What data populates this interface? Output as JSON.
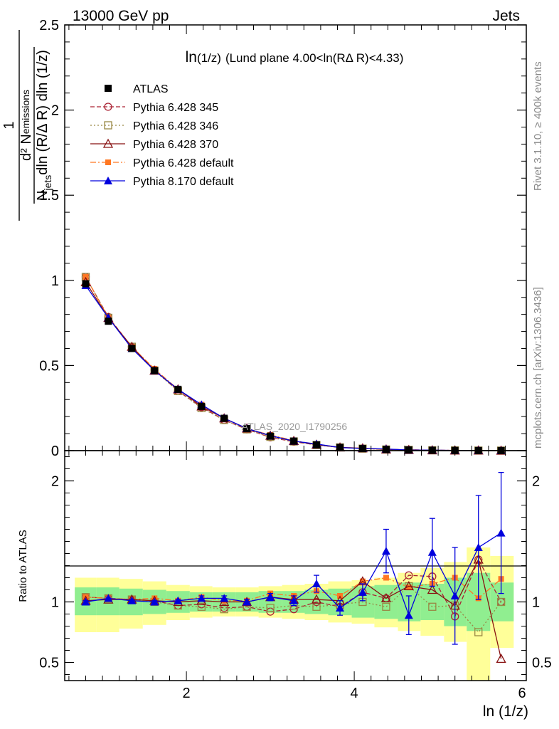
{
  "header": {
    "left": "13000 GeV pp",
    "right": "Jets"
  },
  "side_text": {
    "rivet": "Rivet 3.1.10, ≥ 400k events",
    "mcplots": "mcplots.cern.ch [arXiv:1306.3436]"
  },
  "watermark": "ATLAS_2020_I1790256",
  "colors": {
    "band_inner": "#90ee90",
    "band_outer": "#ffff99",
    "p345": "#aa2233",
    "p346": "#998844",
    "p370": "#881111",
    "p6def": "#ff7722",
    "p8": "#0000dd"
  },
  "chart_data": [
    {
      "type": "line",
      "title_main": "ln",
      "title_sub": "(1/z)",
      "title_rest": "(Lund plane 4.00<ln(RΔ R)<4.33)",
      "ylabel_num": "d² N",
      "ylabel_num_sub": "emissions",
      "ylabel_den": "N",
      "ylabel_den_sub": "jets",
      "ylabel_den_rest": "dln (R/Δ R) dln (1/z)",
      "ylabel_one": "1",
      "xlim": [
        0.55,
        6.05
      ],
      "ylim": [
        0,
        2.5
      ],
      "yticks": [
        0,
        0.5,
        1,
        1.5,
        2,
        2.5
      ],
      "ytick_labels": [
        "0",
        "0.5",
        "1",
        "1.5",
        "2",
        "2.5"
      ],
      "legend_position": "top-left",
      "x": [
        0.8,
        1.07,
        1.35,
        1.62,
        1.9,
        2.18,
        2.45,
        2.72,
        3.0,
        3.28,
        3.55,
        3.83,
        4.1,
        4.38,
        4.65,
        4.93,
        5.2,
        5.48,
        5.75
      ],
      "series": [
        {
          "name": "ATLAS",
          "style": "data",
          "values": [
            0.98,
            0.76,
            0.6,
            0.47,
            0.36,
            0.26,
            0.19,
            0.13,
            0.085,
            0.056,
            0.034,
            0.019,
            0.012,
            0.007,
            0.004,
            0.0022,
            0.0013,
            0.0007,
            0.0004
          ],
          "yerr": [
            0.01,
            0.01,
            0.008,
            0.006,
            0.005,
            0.004,
            0.003,
            0.002,
            0.0015,
            0.001,
            0.0008,
            0.0006,
            0.0005,
            0.0004,
            0.0003,
            0.0002,
            0.0002,
            0.0001,
            0.0001
          ]
        },
        {
          "name": "Pythia 6.428 345",
          "style": "circle",
          "values": [
            1.02,
            0.785,
            0.61,
            0.475,
            0.35,
            0.255,
            0.18,
            0.125,
            0.078,
            0.052,
            0.034,
            0.019,
            0.013,
            0.0072,
            0.0049,
            0.0027,
            0.0012,
            0.001,
            0.0004
          ]
        },
        {
          "name": "Pythia 6.428 346",
          "style": "square-open",
          "values": [
            1.02,
            0.78,
            0.61,
            0.47,
            0.35,
            0.25,
            0.18,
            0.125,
            0.081,
            0.054,
            0.033,
            0.019,
            0.012,
            0.0067,
            0.0045,
            0.0021,
            0.0013,
            0.0005,
            0.0004
          ]
        },
        {
          "name": "Pythia 6.428 370",
          "style": "triangle-open",
          "values": [
            0.99,
            0.78,
            0.61,
            0.47,
            0.36,
            0.26,
            0.19,
            0.13,
            0.088,
            0.057,
            0.035,
            0.019,
            0.014,
            0.0072,
            0.0045,
            0.0024,
            0.0013,
            0.0009,
            0.0002
          ]
        },
        {
          "name": "Pythia 6.428 default",
          "style": "square-filled",
          "values": [
            1.02,
            0.78,
            0.61,
            0.48,
            0.36,
            0.27,
            0.19,
            0.13,
            0.092,
            0.059,
            0.037,
            0.02,
            0.014,
            0.0084,
            0.0045,
            0.0025,
            0.0016,
            0.0007,
            0.0005
          ]
        },
        {
          "name": "Pythia 8.170 default",
          "style": "triangle-filled",
          "values": [
            0.97,
            0.78,
            0.6,
            0.47,
            0.36,
            0.27,
            0.19,
            0.13,
            0.088,
            0.056,
            0.039,
            0.018,
            0.013,
            0.0099,
            0.0035,
            0.0031,
            0.0014,
            0.001,
            0.0006
          ]
        }
      ]
    },
    {
      "type": "line",
      "xlabel": "ln (1/z)",
      "ylabel": "Ratio to ATLAS",
      "xlim": [
        0.55,
        6.05
      ],
      "ylim": [
        0.35,
        2.25
      ],
      "xticks": [
        2,
        4,
        6
      ],
      "xtick_labels": [
        "2",
        "4",
        "6"
      ],
      "yticks": [
        0.5,
        1,
        2
      ],
      "ytick_labels": [
        "0.5",
        "1",
        "2"
      ],
      "x": [
        0.8,
        1.07,
        1.35,
        1.62,
        1.9,
        2.18,
        2.45,
        2.72,
        3.0,
        3.28,
        3.55,
        3.83,
        4.1,
        4.38,
        4.65,
        4.93,
        5.2,
        5.48,
        5.75
      ],
      "bin_edges": [
        0.67,
        0.93,
        1.2,
        1.48,
        1.76,
        2.04,
        2.31,
        2.59,
        2.86,
        3.14,
        3.41,
        3.69,
        3.97,
        4.24,
        4.52,
        4.79,
        5.07,
        5.34,
        5.62,
        5.9
      ],
      "band_inner": [
        [
          0.89,
          1.12
        ],
        [
          0.89,
          1.12
        ],
        [
          0.89,
          1.11
        ],
        [
          0.9,
          1.1
        ],
        [
          0.91,
          1.09
        ],
        [
          0.92,
          1.08
        ],
        [
          0.92,
          1.08
        ],
        [
          0.92,
          1.08
        ],
        [
          0.91,
          1.09
        ],
        [
          0.91,
          1.09
        ],
        [
          0.9,
          1.1
        ],
        [
          0.89,
          1.11
        ],
        [
          0.87,
          1.13
        ],
        [
          0.86,
          1.14
        ],
        [
          0.84,
          1.16
        ],
        [
          0.85,
          1.15
        ],
        [
          0.8,
          1.2
        ],
        [
          0.76,
          1.24
        ],
        [
          0.84,
          1.16
        ]
      ],
      "band_outer": [
        [
          0.75,
          1.2
        ],
        [
          0.75,
          1.2
        ],
        [
          0.78,
          1.19
        ],
        [
          0.81,
          1.17
        ],
        [
          0.85,
          1.14
        ],
        [
          0.87,
          1.13
        ],
        [
          0.88,
          1.12
        ],
        [
          0.88,
          1.12
        ],
        [
          0.87,
          1.13
        ],
        [
          0.86,
          1.14
        ],
        [
          0.85,
          1.15
        ],
        [
          0.83,
          1.17
        ],
        [
          0.82,
          1.18
        ],
        [
          0.79,
          1.2
        ],
        [
          0.76,
          1.24
        ],
        [
          0.72,
          1.28
        ],
        [
          0.67,
          1.33
        ],
        [
          0.35,
          1.45
        ],
        [
          0.62,
          1.38
        ]
      ],
      "series": [
        {
          "name": "Pythia 6.428 345",
          "style": "circle",
          "values": [
            1.04,
            1.03,
            1.02,
            1.01,
            0.97,
            0.98,
            0.95,
            0.96,
            0.92,
            0.94,
            1.0,
            0.96,
            1.08,
            1.03,
            1.22,
            1.21,
            0.88,
            1.35,
            1.0
          ]
        },
        {
          "name": "Pythia 6.428 346",
          "style": "square-open",
          "values": [
            1.04,
            1.03,
            1.02,
            1.0,
            0.97,
            0.96,
            0.94,
            0.96,
            0.95,
            0.97,
            0.96,
            0.98,
            1.0,
            0.96,
            1.13,
            0.96,
            0.97,
            0.75,
            1.0
          ]
        },
        {
          "name": "Pythia 6.428 370",
          "style": "triangle-open",
          "values": [
            1.01,
            1.02,
            1.02,
            1.01,
            1.0,
            1.01,
            1.0,
            1.0,
            1.04,
            1.02,
            1.02,
            1.01,
            1.17,
            1.03,
            1.13,
            1.1,
            0.97,
            1.35,
            0.53
          ]
        },
        {
          "name": "Pythia 6.428 default",
          "style": "square-filled",
          "values": [
            1.04,
            1.03,
            1.02,
            1.03,
            1.01,
            1.04,
            1.01,
            1.01,
            1.07,
            1.05,
            1.09,
            1.05,
            1.17,
            1.2,
            1.12,
            1.15,
            1.2,
            1.03,
            1.19
          ]
        },
        {
          "name": "Pythia 8.170 default",
          "style": "triangle-filled",
          "values": [
            1.0,
            1.03,
            1.01,
            1.0,
            1.01,
            1.03,
            1.03,
            1.0,
            1.04,
            1.01,
            1.15,
            0.95,
            1.08,
            1.42,
            0.89,
            1.41,
            1.05,
            1.45,
            1.57
          ],
          "yerr": [
            0.01,
            0.01,
            0.01,
            0.01,
            0.01,
            0.02,
            0.02,
            0.02,
            0.03,
            0.04,
            0.07,
            0.06,
            0.07,
            0.18,
            0.16,
            0.28,
            0.4,
            0.43,
            0.5
          ]
        }
      ]
    }
  ]
}
